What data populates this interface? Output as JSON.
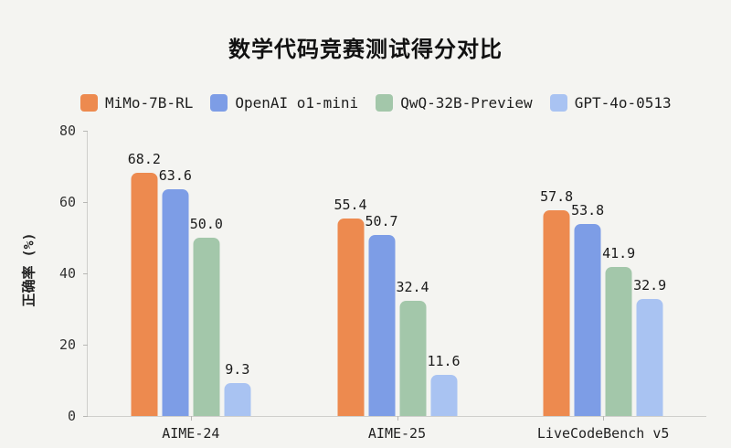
{
  "chart_data": {
    "type": "bar",
    "title": "数学代码竞赛测试得分对比",
    "xlabel": "",
    "ylabel": "正确率 (%)",
    "categories": [
      "AIME-24",
      "AIME-25",
      "LiveCodeBench v5"
    ],
    "series": [
      {
        "name": "MiMo-7B-RL",
        "color": "#ED8A4F",
        "values": [
          68.2,
          55.4,
          57.8
        ]
      },
      {
        "name": "OpenAI o1-mini",
        "color": "#7D9DE6",
        "values": [
          63.6,
          50.7,
          53.8
        ]
      },
      {
        "name": "QwQ-32B-Preview",
        "color": "#A3C7AA",
        "values": [
          50.0,
          32.4,
          41.9
        ]
      },
      {
        "name": "GPT-4o-0513",
        "color": "#A9C3F2",
        "values": [
          9.3,
          11.6,
          32.9
        ]
      }
    ],
    "ylim": [
      0,
      80
    ],
    "yticks": [
      0,
      20,
      40,
      60,
      80
    ],
    "grid": false,
    "legend_position": "top-left",
    "value_labels": "one-decimal"
  },
  "colors": {
    "background": "#F4F4F1",
    "axis": "#CFCFCC",
    "tick": "#B7B7B4",
    "text": "#1F1F1F"
  }
}
